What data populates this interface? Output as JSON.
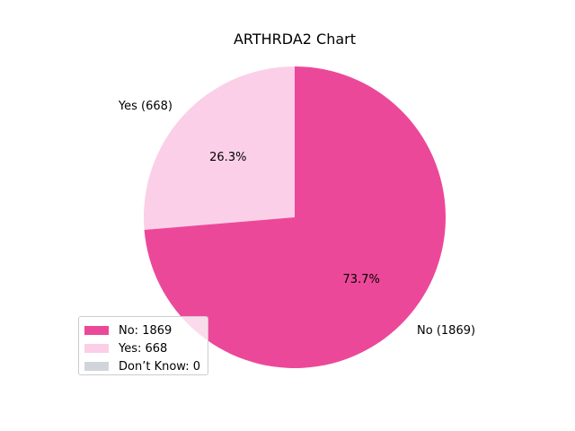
{
  "chart_data": {
    "type": "pie",
    "title": "ARTHRDA2 Chart",
    "slices": [
      {
        "label": "Yes",
        "outer_label": "Yes (668)",
        "value": 668,
        "percent_label": "26.3%",
        "color": "#fbcfe8",
        "legend": "Yes: 668"
      },
      {
        "label": "No",
        "outer_label": "No (1869)",
        "value": 1869,
        "percent_label": "73.7%",
        "color": "#ec4899",
        "legend": "No: 1869"
      },
      {
        "label": "Don’t Know",
        "value": 0,
        "color": "#d1d5db",
        "legend": "Don’t Know: 0"
      }
    ],
    "legend_entries": [
      {
        "text": "No: 1869",
        "color": "#ec4899"
      },
      {
        "text": "Yes: 668",
        "color": "#fbcfe8"
      },
      {
        "text": "Don’t Know: 0",
        "color": "#d1d5db"
      }
    ],
    "legend_position": "lower-left"
  }
}
